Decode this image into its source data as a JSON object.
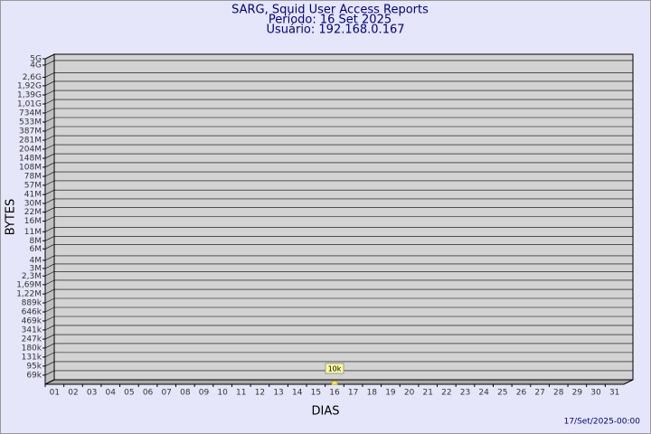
{
  "chart_data": {
    "type": "bar",
    "title": "SARG, Squid User Access Reports",
    "subtitle": [
      "Período: 16 Set 2025",
      "Usuário: 192.168.0.167"
    ],
    "x_label": "DIAS",
    "y_label": "BYTES",
    "footer": "17/Set/2025-00:00",
    "categories": [
      "01",
      "02",
      "03",
      "04",
      "05",
      "06",
      "07",
      "08",
      "09",
      "10",
      "11",
      "12",
      "13",
      "14",
      "15",
      "16",
      "17",
      "18",
      "19",
      "20",
      "21",
      "22",
      "23",
      "24",
      "25",
      "26",
      "27",
      "28",
      "29",
      "30",
      "31"
    ],
    "values": [
      null,
      null,
      null,
      null,
      null,
      null,
      null,
      null,
      null,
      null,
      null,
      null,
      null,
      null,
      null,
      10000,
      null,
      null,
      null,
      null,
      null,
      null,
      null,
      null,
      null,
      null,
      null,
      null,
      null,
      null,
      null
    ],
    "value_labels": [
      null,
      null,
      null,
      null,
      null,
      null,
      null,
      null,
      null,
      null,
      null,
      null,
      null,
      null,
      null,
      "10k",
      null,
      null,
      null,
      null,
      null,
      null,
      null,
      null,
      null,
      null,
      null,
      null,
      null,
      null,
      null
    ],
    "color": "#ffff80",
    "log_scale": true,
    "ylim": [
      50000,
      5000000000
    ],
    "yticks": [
      {
        "value": 69000,
        "label": "69k"
      },
      {
        "value": 95000,
        "label": "95k"
      },
      {
        "value": 131000,
        "label": "131k"
      },
      {
        "value": 180000,
        "label": "180k"
      },
      {
        "value": 247000,
        "label": "247k"
      },
      {
        "value": 341000,
        "label": "341k"
      },
      {
        "value": 469000,
        "label": "469k"
      },
      {
        "value": 646000,
        "label": "646k"
      },
      {
        "value": 889000,
        "label": "889k"
      },
      {
        "value": 1220000,
        "label": "1,22M"
      },
      {
        "value": 1690000,
        "label": "1,69M"
      },
      {
        "value": 2300000,
        "label": "2,3M"
      },
      {
        "value": 3000000,
        "label": "3M"
      },
      {
        "value": 4000000,
        "label": "4M"
      },
      {
        "value": 6000000,
        "label": "6M"
      },
      {
        "value": 8000000,
        "label": "8M"
      },
      {
        "value": 11000000,
        "label": "11M"
      },
      {
        "value": 16000000,
        "label": "16M"
      },
      {
        "value": 22000000,
        "label": "22M"
      },
      {
        "value": 30000000,
        "label": "30M"
      },
      {
        "value": 41000000,
        "label": "41M"
      },
      {
        "value": 57000000,
        "label": "57M"
      },
      {
        "value": 78000000,
        "label": "78M"
      },
      {
        "value": 108000000,
        "label": "108M"
      },
      {
        "value": 148000000,
        "label": "148M"
      },
      {
        "value": 204000000,
        "label": "204M"
      },
      {
        "value": 281000000,
        "label": "281M"
      },
      {
        "value": 387000000,
        "label": "387M"
      },
      {
        "value": 533000000,
        "label": "533M"
      },
      {
        "value": 734000000,
        "label": "734M"
      },
      {
        "value": 1010000000,
        "label": "1,01G"
      },
      {
        "value": 1390000000,
        "label": "1,39G"
      },
      {
        "value": 1920000000,
        "label": "1,92G"
      },
      {
        "value": 2600000000,
        "label": "2,6G"
      },
      {
        "value": 4000000000,
        "label": "4G"
      },
      {
        "value": 5000000000,
        "label": "5G"
      }
    ],
    "grid": true
  }
}
